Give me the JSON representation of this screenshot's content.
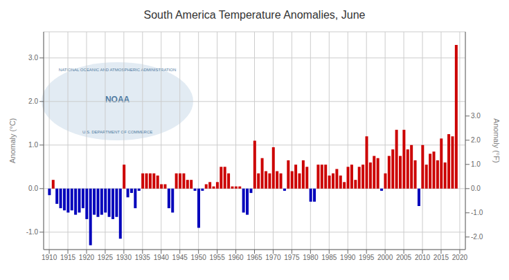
{
  "chart_data": {
    "type": "bar",
    "title": "South America Temperature Anomalies, June",
    "ylabel": "Anomaly (°C)",
    "y2label": "Anomaly (°F)",
    "annotations": [
      "NOAA",
      "NATIONAL OCEANIC AND ATMOSPHERIC ADMINISTRATION",
      "U.S. DEPARTMENT OF COMMERCE"
    ],
    "x": [
      1910,
      1911,
      1912,
      1913,
      1914,
      1915,
      1916,
      1917,
      1918,
      1919,
      1920,
      1921,
      1922,
      1923,
      1924,
      1925,
      1926,
      1927,
      1928,
      1929,
      1930,
      1931,
      1932,
      1933,
      1934,
      1935,
      1936,
      1937,
      1938,
      1939,
      1940,
      1941,
      1942,
      1943,
      1944,
      1945,
      1946,
      1947,
      1948,
      1949,
      1950,
      1951,
      1952,
      1953,
      1954,
      1955,
      1956,
      1957,
      1958,
      1959,
      1960,
      1961,
      1962,
      1963,
      1964,
      1965,
      1966,
      1967,
      1968,
      1969,
      1970,
      1971,
      1972,
      1973,
      1974,
      1975,
      1976,
      1977,
      1978,
      1979,
      1980,
      1981,
      1982,
      1983,
      1984,
      1985,
      1986,
      1987,
      1988,
      1989,
      1990,
      1991,
      1992,
      1993,
      1994,
      1995,
      1996,
      1997,
      1998,
      1999,
      2000,
      2001,
      2002,
      2003,
      2004,
      2005,
      2006,
      2007,
      2008,
      2009,
      2010,
      2011,
      2012,
      2013,
      2014,
      2015,
      2016,
      2017,
      2018,
      2019
    ],
    "values": [
      -0.15,
      0.2,
      -0.35,
      -0.45,
      -0.5,
      -0.55,
      -0.5,
      -0.6,
      -0.55,
      -0.45,
      -0.7,
      -1.3,
      -0.6,
      -0.65,
      -0.6,
      -0.55,
      -0.65,
      -0.7,
      -0.65,
      -1.15,
      0.55,
      -0.2,
      -0.1,
      -0.45,
      -0.05,
      0.35,
      0.35,
      0.35,
      0.35,
      0.3,
      0.1,
      0.1,
      -0.45,
      -0.55,
      0.35,
      0.35,
      0.35,
      0.2,
      0.2,
      -0.05,
      -0.9,
      -0.05,
      0.1,
      0.15,
      0.05,
      0.15,
      0.5,
      0.5,
      0.35,
      0.05,
      0.05,
      0.05,
      -0.55,
      -0.6,
      -0.1,
      1.1,
      0.35,
      0.7,
      0.4,
      0.35,
      0.95,
      0.4,
      0.35,
      -0.05,
      0.65,
      0.4,
      0.55,
      0.35,
      0.65,
      0.5,
      -0.3,
      -0.3,
      0.55,
      0.55,
      0.55,
      0.3,
      0.35,
      0.45,
      0.3,
      0.15,
      0.5,
      0.55,
      0.2,
      0.5,
      0.55,
      1.2,
      0.6,
      0.75,
      0.7,
      -0.05,
      0.35,
      0.75,
      0.9,
      1.35,
      0.75,
      1.35,
      0.9,
      1.0,
      0.65,
      -0.4,
      1.0,
      0.55,
      0.8,
      0.85,
      0.65,
      1.15,
      0.6,
      1.25,
      1.2,
      3.3
    ],
    "colors": [
      "#0000BB",
      "#CC0000",
      "#0000BB",
      "#0000BB",
      "#0000BB",
      "#0000BB",
      "#0000BB",
      "#0000BB",
      "#0000BB",
      "#0000BB",
      "#0000BB",
      "#0000BB",
      "#0000BB",
      "#0000BB",
      "#0000BB",
      "#0000BB",
      "#0000BB",
      "#0000BB",
      "#0000BB",
      "#0000BB",
      "#CC0000",
      "#0000BB",
      "#0000BB",
      "#0000BB",
      "#0000BB",
      "#CC0000",
      "#CC0000",
      "#CC0000",
      "#CC0000",
      "#CC0000",
      "#CC0000",
      "#CC0000",
      "#0000BB",
      "#0000BB",
      "#CC0000",
      "#CC0000",
      "#CC0000",
      "#CC0000",
      "#CC0000",
      "#0000BB",
      "#0000BB",
      "#0000BB",
      "#CC0000",
      "#CC0000",
      "#CC0000",
      "#CC0000",
      "#CC0000",
      "#CC0000",
      "#CC0000",
      "#CC0000",
      "#CC0000",
      "#CC0000",
      "#0000BB",
      "#0000BB",
      "#0000BB",
      "#CC0000",
      "#CC0000",
      "#CC0000",
      "#CC0000",
      "#CC0000",
      "#CC0000",
      "#CC0000",
      "#CC0000",
      "#0000BB",
      "#CC0000",
      "#CC0000",
      "#CC0000",
      "#CC0000",
      "#CC0000",
      "#CC0000",
      "#0000BB",
      "#0000BB",
      "#CC0000",
      "#CC0000",
      "#CC0000",
      "#CC0000",
      "#CC0000",
      "#CC0000",
      "#CC0000",
      "#CC0000",
      "#CC0000",
      "#CC0000",
      "#CC0000",
      "#CC0000",
      "#CC0000",
      "#CC0000",
      "#CC0000",
      "#CC0000",
      "#CC0000",
      "#0000BB",
      "#CC0000",
      "#CC0000",
      "#CC0000",
      "#CC0000",
      "#CC0000",
      "#CC0000",
      "#CC0000",
      "#CC0000",
      "#CC0000",
      "#0000BB",
      "#CC0000",
      "#CC0000",
      "#CC0000",
      "#CC0000",
      "#CC0000",
      "#CC0000",
      "#CC0000",
      "#CC0000",
      "#CC0000",
      "#CC0000"
    ],
    "xlim": [
      1908.5,
      2021.5
    ],
    "xticks": [
      1910,
      1915,
      1920,
      1925,
      1930,
      1935,
      1940,
      1945,
      1950,
      1955,
      1960,
      1965,
      1970,
      1975,
      1980,
      1985,
      1990,
      1995,
      2000,
      2005,
      2010,
      2015,
      2020
    ],
    "ylim": [
      -1.4,
      3.6
    ],
    "yticks": [
      {
        "value": -1.0,
        "label": "-1.0"
      },
      {
        "value": 0.0,
        "label": "0.0"
      },
      {
        "value": 1.0,
        "label": "1.0"
      },
      {
        "value": 2.0,
        "label": "2.0"
      },
      {
        "value": 3.0,
        "label": "3.0"
      }
    ],
    "y2lim": [
      -2.52,
      6.48
    ],
    "y2ticks": [
      {
        "value": -2.0,
        "label": "-2.0"
      },
      {
        "value": -1.0,
        "label": "-1.0"
      },
      {
        "value": 0.0,
        "label": "0.0"
      },
      {
        "value": 1.0,
        "label": "1.0"
      },
      {
        "value": 2.0,
        "label": "2.0"
      },
      {
        "value": 3.0,
        "label": "3.0"
      }
    ],
    "grid": true
  }
}
